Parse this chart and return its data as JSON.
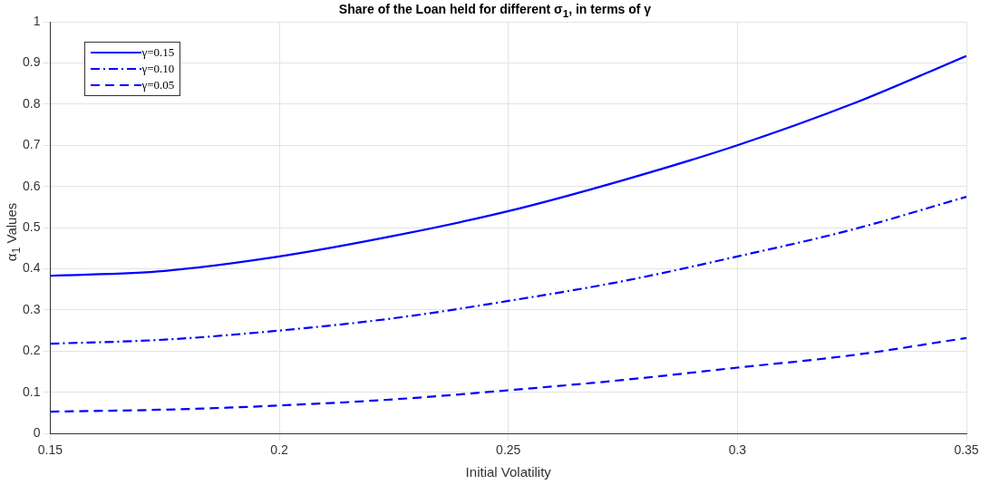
{
  "chart_data": {
    "type": "line",
    "title": "Share of the Loan held for different σ$_{1}$, in terms of γ",
    "xlabel": "Initial Volatility",
    "ylabel": "α$_{1}$ Values",
    "x": [
      0.15,
      0.175,
      0.2,
      0.225,
      0.25,
      0.275,
      0.3,
      0.325,
      0.35
    ],
    "series": [
      {
        "name": "γ=0.15",
        "color": "#0000ff",
        "line_style": "solid",
        "values": [
          0.383,
          0.395,
          0.43,
          0.48,
          0.54,
          0.615,
          0.7,
          0.8,
          0.917
        ]
      },
      {
        "name": "γ=0.10",
        "color": "#0000ff",
        "line_style": "dashdot",
        "values": [
          0.218,
          0.228,
          0.25,
          0.28,
          0.322,
          0.37,
          0.43,
          0.495,
          0.575
        ]
      },
      {
        "name": "γ=0.05",
        "color": "#0000ff",
        "line_style": "dashed",
        "values": [
          0.053,
          0.058,
          0.068,
          0.083,
          0.105,
          0.13,
          0.16,
          0.19,
          0.232
        ]
      }
    ],
    "xlim": [
      0.15,
      0.35
    ],
    "xticks": [
      0.15,
      0.2,
      0.25,
      0.3,
      0.35
    ],
    "ylim": [
      0,
      1
    ],
    "yticks": [
      0,
      0.1,
      0.2,
      0.3,
      0.4,
      0.5,
      0.6,
      0.7,
      0.8,
      0.9,
      1
    ],
    "grid": true,
    "legend": "top left",
    "marker": "none"
  }
}
